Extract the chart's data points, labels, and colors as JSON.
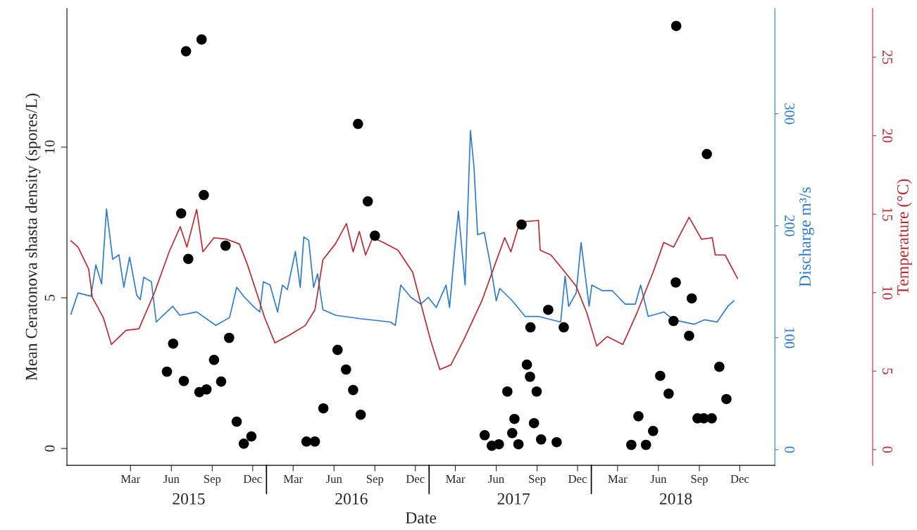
{
  "chart_data": {
    "type": "scatter",
    "xlabel": "Date",
    "ylabel": "Mean Ceratonova shasta density (spores/L)",
    "y2label": "Discharge m³/s",
    "y3label": "Temperature (°C)",
    "xlim": [
      "2014-10-09",
      "2019-02-18"
    ],
    "xticks": [
      {
        "value": "2015-03-01",
        "label": "Mar"
      },
      {
        "value": "2015-06-01",
        "label": "Jun"
      },
      {
        "value": "2015-09-01",
        "label": "Sep"
      },
      {
        "value": "2015-12-01",
        "label": "Dec"
      },
      {
        "value": "2016-01-01",
        "label": null
      },
      {
        "value": "2016-03-01",
        "label": "Mar"
      },
      {
        "value": "2016-06-01",
        "label": "Jun"
      },
      {
        "value": "2016-09-01",
        "label": "Sep"
      },
      {
        "value": "2016-12-01",
        "label": "Dec"
      },
      {
        "value": "2017-01-01",
        "label": null
      },
      {
        "value": "2017-03-01",
        "label": "Mar"
      },
      {
        "value": "2017-06-01",
        "label": "Jun"
      },
      {
        "value": "2017-09-01",
        "label": "Sep"
      },
      {
        "value": "2017-12-01",
        "label": "Dec"
      },
      {
        "value": "2018-01-01",
        "label": null
      },
      {
        "value": "2018-03-01",
        "label": "Mar"
      },
      {
        "value": "2018-06-01",
        "label": "Jun"
      },
      {
        "value": "2018-09-01",
        "label": "Sep"
      },
      {
        "value": "2018-12-01",
        "label": "Dec"
      }
    ],
    "x2lim": [
      "2014-10-09",
      "2019-02-18"
    ],
    "x2ticks": [
      {
        "value": "2015-07-10",
        "label": "2015"
      },
      {
        "value": "2016-07-10",
        "label": "2016"
      },
      {
        "value": "2017-07-10",
        "label": "2017"
      },
      {
        "value": "2018-07-10",
        "label": "2018"
      }
    ],
    "ylim": [
      -0.56,
      14.6
    ],
    "yticks": [
      0,
      5,
      10
    ],
    "y2lim": [
      -14,
      394
    ],
    "y2ticks": [
      0,
      100,
      200,
      300
    ],
    "y3lim": [
      -1.0,
      28.1
    ],
    "y3ticks": [
      0,
      5,
      10,
      15,
      20,
      25
    ],
    "grid": false,
    "legend": false,
    "series": [
      {
        "type": "scatter",
        "color": "#000000",
        "marker": "circle",
        "x": [
          "2015-05-22",
          "2015-06-05",
          "2015-06-23",
          "2015-06-29",
          "2015-07-04",
          "2015-07-09",
          "2015-08-03",
          "2015-08-08",
          "2015-08-13",
          "2015-08-19",
          "2015-09-05",
          "2015-09-21",
          "2015-10-01",
          "2015-10-09",
          "2015-10-26",
          "2015-11-11",
          "2015-11-28",
          "2016-03-31",
          "2016-04-19",
          "2016-05-08",
          "2016-06-09",
          "2016-06-28",
          "2016-07-14",
          "2016-07-25",
          "2016-07-31",
          "2016-08-16",
          "2016-09-01",
          "2017-05-06",
          "2017-05-22",
          "2017-06-07",
          "2017-06-26",
          "2017-07-07",
          "2017-07-12",
          "2017-07-21",
          "2017-07-28",
          "2017-08-09",
          "2017-08-16",
          "2017-08-17",
          "2017-08-25",
          "2017-08-31",
          "2017-09-10",
          "2017-09-26",
          "2017-10-15",
          "2017-10-31",
          "2018-04-01",
          "2018-04-17",
          "2018-05-04",
          "2018-05-20",
          "2018-06-05",
          "2018-06-24",
          "2018-07-05",
          "2018-07-10",
          "2018-07-11",
          "2018-08-09",
          "2018-08-15",
          "2018-08-28",
          "2018-09-11",
          "2018-09-18",
          "2018-09-29",
          "2018-10-16",
          "2018-11-01"
        ],
        "values": [
          2.55,
          3.48,
          7.8,
          2.24,
          13.18,
          6.29,
          1.87,
          13.57,
          8.41,
          1.96,
          2.94,
          2.22,
          6.73,
          3.67,
          0.89,
          0.16,
          0.4,
          0.23,
          0.23,
          1.33,
          3.27,
          2.62,
          1.94,
          10.77,
          1.12,
          8.2,
          7.06,
          0.44,
          0.09,
          0.14,
          1.89,
          0.51,
          0.98,
          0.14,
          7.43,
          2.78,
          2.38,
          4.02,
          0.84,
          1.89,
          0.3,
          4.6,
          0.21,
          4.02,
          0.12,
          1.07,
          0.12,
          0.58,
          2.41,
          1.82,
          4.23,
          5.51,
          14.02,
          3.74,
          4.98,
          1.0,
          1.0,
          9.77,
          1.0,
          2.71,
          1.64
        ]
      },
      {
        "type": "line",
        "axis": "y2",
        "color": "#2b7bd3",
        "line_style": "solid",
        "x": [
          "2014-10-18",
          "2014-11-03",
          "2014-12-02",
          "2014-12-13",
          "2014-12-26",
          "2015-01-06",
          "2015-01-20",
          "2015-02-03",
          "2015-02-14",
          "2015-02-27",
          "2015-03-15",
          "2015-03-23",
          "2015-03-31",
          "2015-04-17",
          "2015-04-28",
          "2015-06-04",
          "2015-06-20",
          "2015-07-28",
          "2015-09-09",
          "2015-10-10",
          "2015-10-26",
          "2015-11-13",
          "2015-12-05",
          "2015-12-17",
          "2015-12-25",
          "2016-01-09",
          "2016-01-26",
          "2016-02-06",
          "2016-02-17",
          "2016-03-06",
          "2016-03-17",
          "2016-03-25",
          "2016-04-05",
          "2016-04-16",
          "2016-04-25",
          "2016-05-07",
          "2016-06-05",
          "2016-07-30",
          "2016-10-06",
          "2016-10-17",
          "2016-10-29",
          "2016-11-21",
          "2016-12-13",
          "2016-12-30",
          "2017-01-17",
          "2017-02-08",
          "2017-02-16",
          "2017-02-27",
          "2017-03-08",
          "2017-03-23",
          "2017-04-04",
          "2017-04-12",
          "2017-04-20",
          "2017-05-05",
          "2017-05-19",
          "2017-06-01",
          "2017-06-09",
          "2017-07-07",
          "2017-08-05",
          "2017-09-04",
          "2017-10-24",
          "2017-11-03",
          "2017-11-11",
          "2017-11-28",
          "2017-12-09",
          "2017-12-27",
          "2018-01-02",
          "2018-01-26",
          "2018-02-17",
          "2018-03-18",
          "2018-04-10",
          "2018-04-22",
          "2018-05-09",
          "2018-06-13",
          "2018-07-05",
          "2018-08-20",
          "2018-09-13",
          "2018-10-11",
          "2018-11-04",
          "2018-11-18"
        ],
        "values": [
          121,
          140,
          137,
          165,
          148,
          215,
          170,
          174,
          145,
          172,
          138,
          134,
          154,
          150,
          114,
          128,
          120,
          123,
          111,
          118,
          145,
          136,
          127,
          123,
          150,
          147,
          123,
          147,
          143,
          177,
          145,
          190,
          187,
          145,
          157,
          125,
          120,
          117,
          114,
          111,
          147,
          136,
          130,
          136,
          127,
          147,
          127,
          176,
          213,
          147,
          285,
          252,
          192,
          194,
          165,
          133,
          144,
          133,
          119,
          119,
          114,
          155,
          128,
          140,
          185,
          128,
          147,
          142,
          142,
          130,
          130,
          147,
          119,
          123,
          116,
          112,
          116,
          114,
          128,
          133
        ]
      },
      {
        "type": "line",
        "axis": "y3",
        "color": "#c0272d",
        "line_style": "solid",
        "x": [
          "2014-10-18",
          "2014-11-03",
          "2014-11-27",
          "2014-12-05",
          "2014-12-30",
          "2015-01-17",
          "2015-02-19",
          "2015-03-20",
          "2015-04-24",
          "2015-05-27",
          "2015-06-21",
          "2015-07-06",
          "2015-07-28",
          "2015-08-11",
          "2015-09-05",
          "2015-10-04",
          "2015-11-01",
          "2015-11-19",
          "2015-12-11",
          "2015-12-28",
          "2016-01-20",
          "2016-02-22",
          "2016-03-28",
          "2016-04-19",
          "2016-05-07",
          "2016-06-04",
          "2016-06-29",
          "2016-07-14",
          "2016-07-28",
          "2016-08-11",
          "2016-08-27",
          "2016-09-20",
          "2016-10-23",
          "2016-11-25",
          "2016-12-19",
          "2017-01-04",
          "2017-01-25",
          "2017-02-19",
          "2017-03-20",
          "2017-04-30",
          "2017-05-28",
          "2017-06-20",
          "2017-07-04",
          "2017-07-24",
          "2017-09-04",
          "2017-09-08",
          "2017-10-02",
          "2017-10-31",
          "2017-11-28",
          "2017-12-22",
          "2018-01-13",
          "2018-02-06",
          "2018-03-13",
          "2018-04-15",
          "2018-05-20",
          "2018-06-13",
          "2018-07-05",
          "2018-08-09",
          "2018-09-06",
          "2018-09-30",
          "2018-10-07",
          "2018-10-29",
          "2018-11-26"
        ],
        "values": [
          13.3,
          12.9,
          11.5,
          9.7,
          8.4,
          6.7,
          7.6,
          7.7,
          10.0,
          12.6,
          14.2,
          12.9,
          15.3,
          12.6,
          13.5,
          13.4,
          13.1,
          11.8,
          9.9,
          8.4,
          6.8,
          7.3,
          7.9,
          8.9,
          12.1,
          13.1,
          14.4,
          12.6,
          13.9,
          12.4,
          13.5,
          13.2,
          12.7,
          11.3,
          8.7,
          7.0,
          5.1,
          5.4,
          7.0,
          9.5,
          11.7,
          13.5,
          12.6,
          14.5,
          14.6,
          12.7,
          12.4,
          11.4,
          10.4,
          8.7,
          6.6,
          7.2,
          6.7,
          8.8,
          11.3,
          13.2,
          12.9,
          14.8,
          13.4,
          13.5,
          12.4,
          12.4,
          10.9
        ]
      }
    ]
  }
}
